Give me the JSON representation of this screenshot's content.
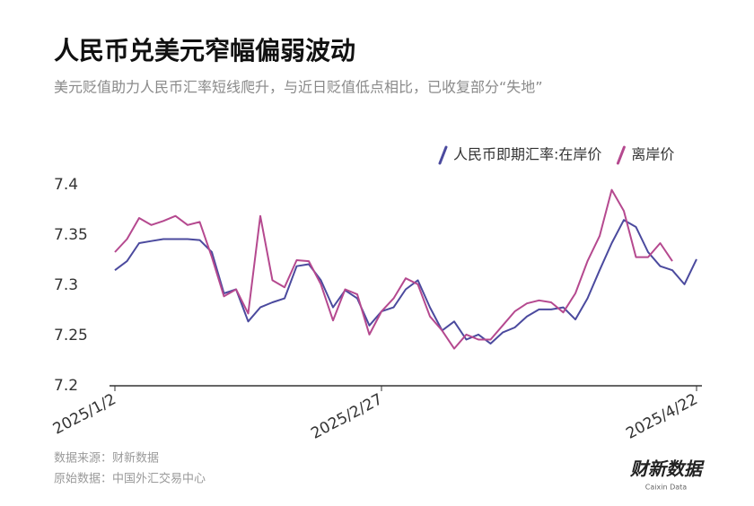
{
  "chart_data": {
    "type": "line",
    "title": "人民币兑美元窄幅偏弱波动",
    "subtitle": "美元贬值助力人民币汇率短线爬升，与近日贬值低点相比，已收复部分“失地”",
    "source": "数据来源：财新数据",
    "origin": "原始数据：中国外汇交易中心",
    "logo": "财新数据",
    "logo_sub": "Caixin Data",
    "categories": [
      "2025/1/2",
      null,
      null,
      null,
      null,
      null,
      null,
      null,
      null,
      null,
      null,
      null,
      null,
      null,
      null,
      null,
      null,
      null,
      null,
      null,
      null,
      null,
      "2025/2/27",
      null,
      null,
      null,
      null,
      null,
      null,
      null,
      null,
      null,
      null,
      null,
      null,
      null,
      null,
      null,
      null,
      null,
      null,
      null,
      null,
      null,
      null,
      null,
      null,
      null,
      "2025/4/22"
    ],
    "series": [
      {
        "name": "人民币即期汇率:在岸价",
        "color": "#4b4a9e",
        "values": [
          7.315,
          7.324,
          7.342,
          7.344,
          7.346,
          7.346,
          7.346,
          7.345,
          7.333,
          7.292,
          7.296,
          7.264,
          7.278,
          7.283,
          7.287,
          7.319,
          7.321,
          7.305,
          7.278,
          7.295,
          7.287,
          7.26,
          7.274,
          7.278,
          7.296,
          7.305,
          7.278,
          7.255,
          7.264,
          7.246,
          7.251,
          7.242,
          7.253,
          7.258,
          7.269,
          7.276,
          7.276,
          7.278,
          7.266,
          7.287,
          7.315,
          7.342,
          7.365,
          7.358,
          7.333,
          7.319,
          7.315,
          7.301,
          7.326
        ]
      },
      {
        "name": "离岸价",
        "color": "#b5498f",
        "values": [
          7.333,
          7.346,
          7.367,
          7.36,
          7.364,
          7.369,
          7.36,
          7.363,
          7.328,
          7.289,
          7.296,
          7.272,
          7.369,
          7.305,
          7.298,
          7.325,
          7.324,
          7.301,
          7.265,
          7.296,
          7.291,
          7.251,
          7.274,
          7.287,
          7.307,
          7.301,
          7.269,
          7.255,
          7.237,
          7.251,
          7.246,
          7.246,
          7.26,
          7.274,
          7.282,
          7.285,
          7.283,
          7.273,
          7.292,
          7.324,
          7.349,
          7.395,
          7.374,
          7.328,
          7.328,
          7.342,
          7.324,
          null,
          null
        ]
      }
    ],
    "ylim": [
      7.2,
      7.4
    ],
    "yticks": [
      7.2,
      7.25,
      7.3,
      7.35,
      7.4
    ],
    "grid": false,
    "legend": "top-right"
  }
}
